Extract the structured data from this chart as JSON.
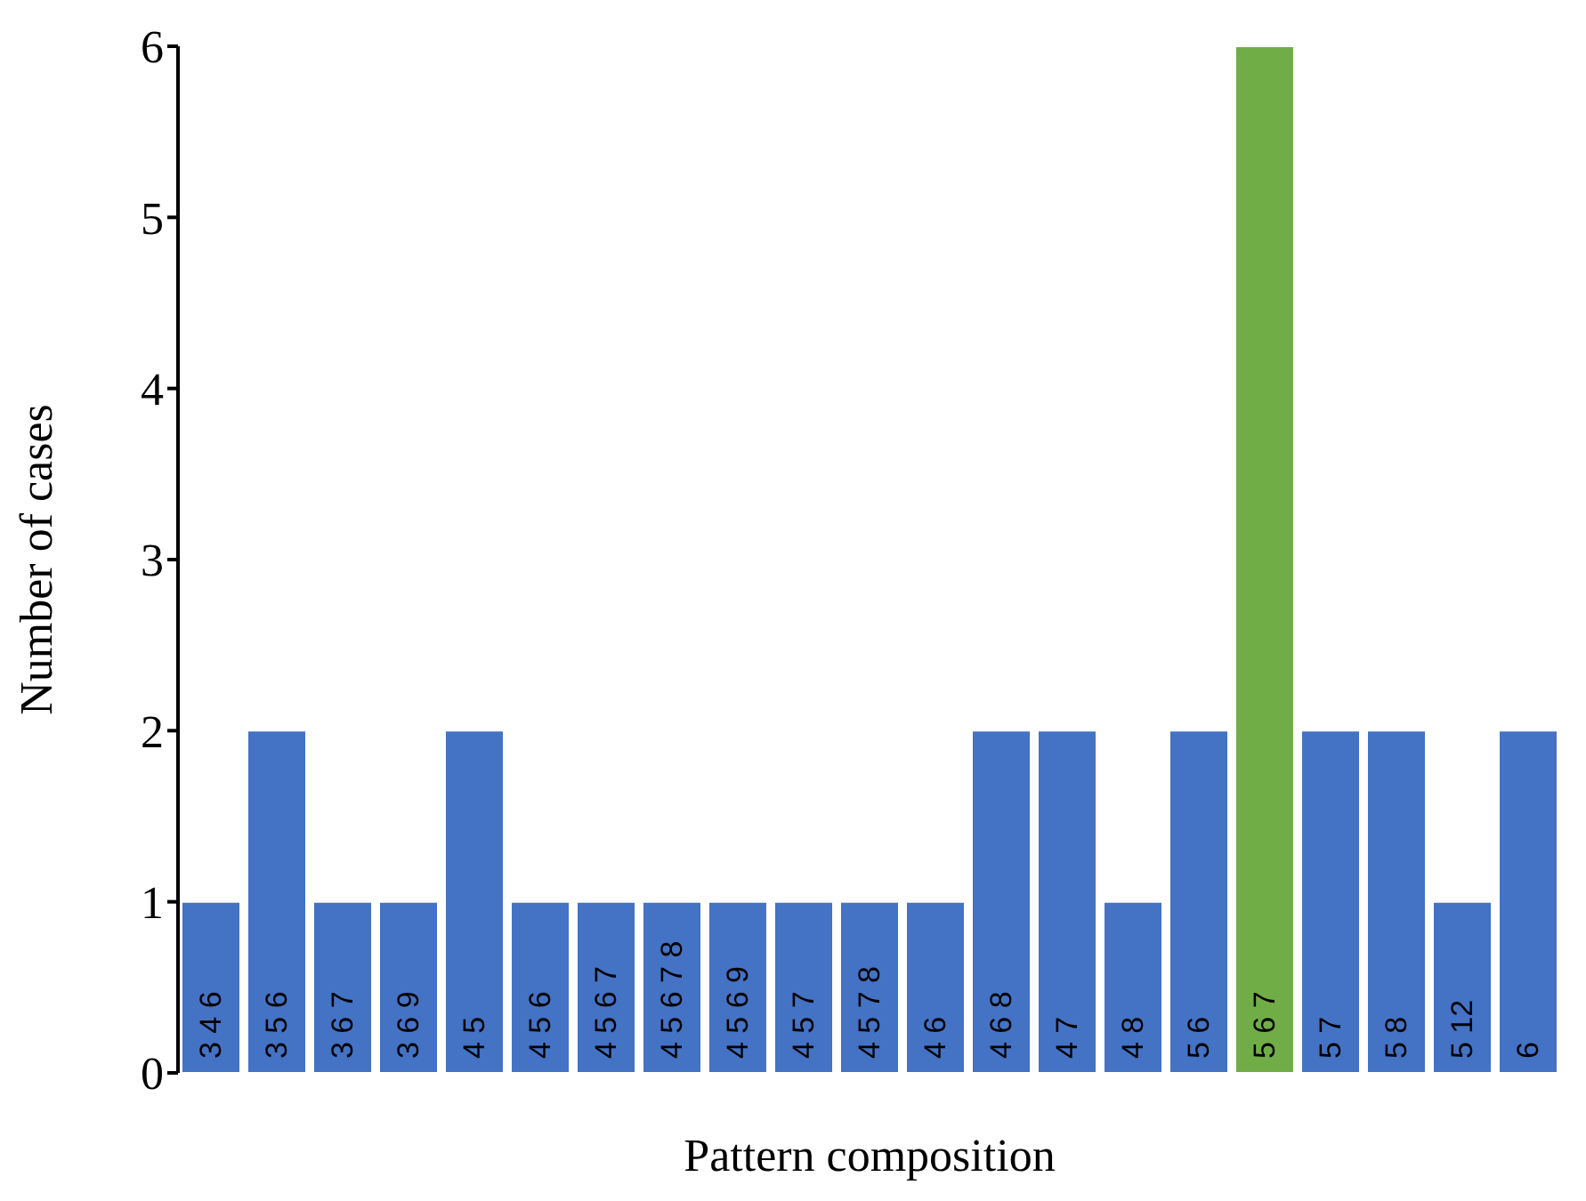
{
  "chart_data": {
    "type": "bar",
    "xlabel": "Pattern composition",
    "ylabel": "Number of cases",
    "categories": [
      "3 4 6",
      "3 5 6",
      "3 6 7",
      "3 6 9",
      "4 5",
      "4 5 6",
      "4 5 6 7",
      "4 5 6 7 8",
      "4 5 6 9",
      "4 5 7",
      "4 5 7 8",
      "4 6",
      "4 6 8",
      "4 7",
      "4 8",
      "5 6",
      "5 6 7",
      "5 7",
      "5 8",
      "5 12",
      "6"
    ],
    "values": [
      1,
      2,
      1,
      1,
      2,
      1,
      1,
      1,
      1,
      1,
      1,
      1,
      2,
      2,
      1,
      2,
      6,
      2,
      2,
      1,
      2
    ],
    "colors": [
      "#4472c4",
      "#4472c4",
      "#4472c4",
      "#4472c4",
      "#4472c4",
      "#4472c4",
      "#4472c4",
      "#4472c4",
      "#4472c4",
      "#4472c4",
      "#4472c4",
      "#4472c4",
      "#4472c4",
      "#4472c4",
      "#4472c4",
      "#4472c4",
      "#70ad47",
      "#4472c4",
      "#4472c4",
      "#4472c4",
      "#4472c4"
    ],
    "ylim": [
      0,
      6
    ],
    "yticks": [
      0,
      1,
      2,
      3,
      4,
      5,
      6
    ],
    "grid": false
  }
}
